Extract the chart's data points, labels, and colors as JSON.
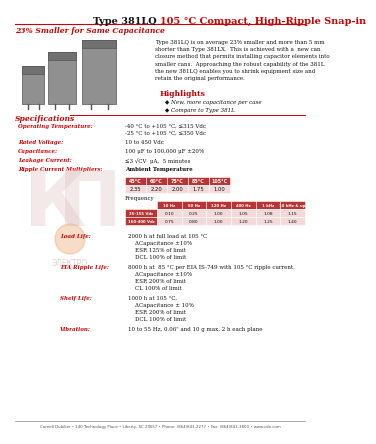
{
  "title_black": "Type 381LQ ",
  "title_red": "105 °C Compact, High-Ripple Snap-in",
  "subtitle": "23% Smaller for Same Capacitance",
  "body_text_lines": [
    "Type 381LQ is on average 23% smaller and more than 5 mm",
    "shorter than Type 381LX.  This is achieved with a  new can",
    "closure method that permits installing capacitor elements into",
    "smaller cans.  Approaching the robust capability of the 381L",
    "the new 381LQ enables you to shrink equipment size and",
    "retain the original performance."
  ],
  "highlights_title": "Highlights",
  "highlights": [
    "New, more capacitance per case",
    "Compare to Type 381L"
  ],
  "specs_title": "Specifications",
  "spec_rows": [
    [
      "Operating Temperature:",
      "-40 °C to +105 °C, ≤315 Vdc\n-25 °C to +105 °C, ≤350 Vdc"
    ],
    [
      "Rated Voltage:",
      "10 to 450 Vdc"
    ],
    [
      "Capacitance:",
      "100 μF to 100,000 μF ±20%"
    ],
    [
      "Leakage Current:",
      "≤3 √CV  μA,  5 minutes"
    ],
    [
      "Ripple Current Multipliers:",
      "Ambient Temperature"
    ]
  ],
  "ambient_headers": [
    "45°C",
    "60°C",
    "75°C",
    "85°C",
    "105°C"
  ],
  "ambient_values": [
    "2.35",
    "2.20",
    "2.00",
    "1.75",
    "1.00"
  ],
  "freq_label": "Frequency",
  "freq_headers": [
    "10 Hz",
    "50 Hz",
    "120 Hz",
    "400 Hz",
    "1 kHz",
    "10 kHz & up"
  ],
  "freq_row1_label": "35-155 Vdc",
  "freq_row1": [
    "0.10",
    "0.25",
    "1.00",
    "1.05",
    "1.08",
    "1.15"
  ],
  "freq_row2_label": "160-400 Vdc",
  "freq_row2": [
    "0.75",
    "0.80",
    "1.00",
    "1.20",
    "1.25",
    "1.40"
  ],
  "load_life_label": "Load Life:",
  "load_life_lines": [
    "2000 h at full load at 105 °C",
    "    ΔCapacitance ±10%",
    "    ESR 125% of limit",
    "    DCL 100% of limit"
  ],
  "eia_label": "EIA Ripple Life:",
  "eia_lines": [
    "8000 h at  85 °C per EIA IS-749 with 105 °C ripple current.",
    "    ΔCapacitance ±10%",
    "    ESR 200% of limit",
    "    CL 100% of limit"
  ],
  "shelf_label": "Shelf Life:",
  "shelf_lines": [
    "1000 h at 105 °C,",
    "    ΔCapacitance ± 10%",
    "    ESR 200% of limit",
    "    DCL 100% of limit"
  ],
  "vibration_label": "Vibration:",
  "vibration_line": "10 to 55 Hz, 0.06\" and 10 g max, 2 h each plane",
  "footer": "Cornell Dubilier • 140 Technology Place • Liberty, SC 29657 • Phone: (864)843-2277 • Fax: (864)843-3800 • www.cde.com",
  "red_color": "#CC0000",
  "bg_color": "#FFFFFF"
}
